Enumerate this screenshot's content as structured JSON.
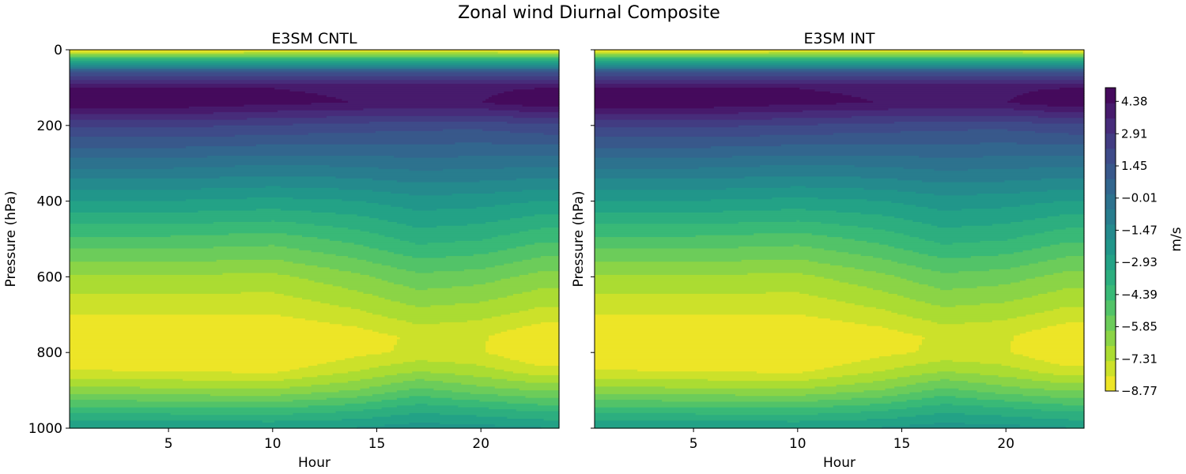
{
  "figure": {
    "title": "Zonal wind Diurnal Composite"
  },
  "chart_data": [
    {
      "type": "heatmap",
      "subtype": "filled-contour",
      "title": "E3SM CNTL",
      "xlabel": "Hour",
      "ylabel": "Pressure (hPa)",
      "xlim": [
        0.25,
        23.75
      ],
      "ylim": [
        1000,
        0
      ],
      "y_inverted": true,
      "xticks": [
        5,
        10,
        15,
        20
      ],
      "yticks": [
        0,
        200,
        400,
        600,
        800,
        1000
      ],
      "show_yticklabels": true,
      "colormap": "viridis_r",
      "vmin": -8.77,
      "vmax": 5.0,
      "hours": [
        1,
        5,
        10,
        14,
        17,
        20,
        23
      ],
      "pressure": [
        0,
        20,
        60,
        100,
        140,
        200,
        300,
        400,
        500,
        600,
        700,
        760,
        800,
        850,
        900,
        950,
        1000
      ],
      "values_ms": [
        [
          -8.9,
          -8.9,
          -8.8,
          -8.8,
          -8.8,
          -8.8,
          -8.9
        ],
        [
          -5.0,
          -5.0,
          -5.0,
          -5.0,
          -5.0,
          -5.0,
          -5.0
        ],
        [
          1.5,
          1.5,
          1.5,
          1.5,
          1.5,
          1.5,
          1.5
        ],
        [
          4.4,
          4.4,
          4.3,
          4.2,
          4.2,
          4.2,
          4.3
        ],
        [
          4.9,
          4.9,
          4.5,
          4.3,
          4.3,
          4.3,
          4.8
        ],
        [
          2.4,
          2.4,
          2.2,
          2.0,
          1.8,
          1.8,
          2.1
        ],
        [
          -0.2,
          -0.2,
          -0.4,
          -0.3,
          -0.1,
          -0.2,
          -0.3
        ],
        [
          -2.6,
          -2.6,
          -2.8,
          -2.6,
          -2.2,
          -2.3,
          -2.6
        ],
        [
          -4.8,
          -4.8,
          -5.0,
          -4.4,
          -3.7,
          -3.9,
          -4.5
        ],
        [
          -6.8,
          -6.8,
          -6.9,
          -6.2,
          -5.5,
          -5.7,
          -6.3
        ],
        [
          -8.1,
          -8.1,
          -8.1,
          -7.6,
          -7.0,
          -7.2,
          -7.7
        ],
        [
          -8.9,
          -8.9,
          -8.9,
          -8.5,
          -7.9,
          -8.0,
          -8.8
        ],
        [
          -9.0,
          -9.0,
          -9.0,
          -8.3,
          -7.9,
          -8.0,
          -8.9
        ],
        [
          -8.0,
          -8.1,
          -8.2,
          -7.4,
          -6.7,
          -7.1,
          -7.8
        ],
        [
          -6.4,
          -6.5,
          -6.6,
          -6.0,
          -5.1,
          -5.7,
          -6.1
        ],
        [
          -4.4,
          -4.4,
          -4.5,
          -4.1,
          -3.5,
          -3.8,
          -4.2
        ],
        [
          -2.6,
          -2.6,
          -2.6,
          -2.5,
          -2.2,
          -2.3,
          -2.5
        ]
      ]
    },
    {
      "type": "heatmap",
      "subtype": "filled-contour",
      "title": "E3SM INT",
      "xlabel": "Hour",
      "ylabel": "Pressure (hPa)",
      "xlim": [
        0.25,
        23.75
      ],
      "ylim": [
        1000,
        0
      ],
      "y_inverted": true,
      "xticks": [
        5,
        10,
        15,
        20
      ],
      "yticks": [
        0,
        200,
        400,
        600,
        800,
        1000
      ],
      "show_yticklabels": false,
      "colormap": "viridis_r",
      "vmin": -8.77,
      "vmax": 5.0,
      "hours": [
        1,
        5,
        10,
        14,
        17,
        20,
        23
      ],
      "pressure": [
        0,
        20,
        60,
        100,
        140,
        200,
        300,
        400,
        500,
        600,
        700,
        760,
        800,
        850,
        900,
        950,
        1000
      ],
      "values_ms": [
        [
          -8.9,
          -8.9,
          -8.8,
          -8.8,
          -8.8,
          -8.8,
          -8.9
        ],
        [
          -5.0,
          -5.0,
          -5.0,
          -5.0,
          -5.0,
          -5.0,
          -5.0
        ],
        [
          1.5,
          1.5,
          1.5,
          1.5,
          1.5,
          1.5,
          1.5
        ],
        [
          4.4,
          4.4,
          4.3,
          4.2,
          4.2,
          4.2,
          4.3
        ],
        [
          4.9,
          4.9,
          4.5,
          4.3,
          4.3,
          4.3,
          4.8
        ],
        [
          2.4,
          2.4,
          2.2,
          2.0,
          1.8,
          1.8,
          2.1
        ],
        [
          -0.2,
          -0.2,
          -0.4,
          -0.3,
          -0.1,
          -0.2,
          -0.3
        ],
        [
          -2.6,
          -2.6,
          -2.8,
          -2.6,
          -2.2,
          -2.3,
          -2.6
        ],
        [
          -4.8,
          -4.8,
          -5.0,
          -4.4,
          -3.7,
          -3.9,
          -4.5
        ],
        [
          -6.8,
          -6.8,
          -6.9,
          -6.2,
          -5.5,
          -5.7,
          -6.3
        ],
        [
          -8.1,
          -8.1,
          -8.1,
          -7.6,
          -7.0,
          -7.2,
          -7.7
        ],
        [
          -8.9,
          -8.9,
          -8.9,
          -8.5,
          -7.9,
          -8.0,
          -8.8
        ],
        [
          -9.0,
          -9.0,
          -9.0,
          -8.3,
          -7.9,
          -8.0,
          -8.9
        ],
        [
          -8.0,
          -8.1,
          -8.2,
          -7.4,
          -6.7,
          -7.1,
          -7.8
        ],
        [
          -6.4,
          -6.5,
          -6.6,
          -6.0,
          -5.1,
          -5.7,
          -6.1
        ],
        [
          -4.4,
          -4.4,
          -4.5,
          -4.1,
          -3.5,
          -3.8,
          -4.2
        ],
        [
          -2.6,
          -2.6,
          -2.6,
          -2.5,
          -2.2,
          -2.3,
          -2.5
        ]
      ]
    }
  ],
  "colorbar": {
    "label": "m/s",
    "ticks": [
      -8.77,
      -7.31,
      -5.85,
      -4.39,
      -2.93,
      -1.47,
      -0.01,
      1.45,
      2.91,
      4.38
    ],
    "tick_labels": [
      "−8.77",
      "−7.31",
      "−5.85",
      "−4.39",
      "−2.93",
      "−1.47",
      "−0.01",
      "1.45",
      "2.91",
      "4.38"
    ],
    "range": [
      -8.77,
      5.0
    ],
    "colormap": "viridis_r",
    "levels": 20
  }
}
